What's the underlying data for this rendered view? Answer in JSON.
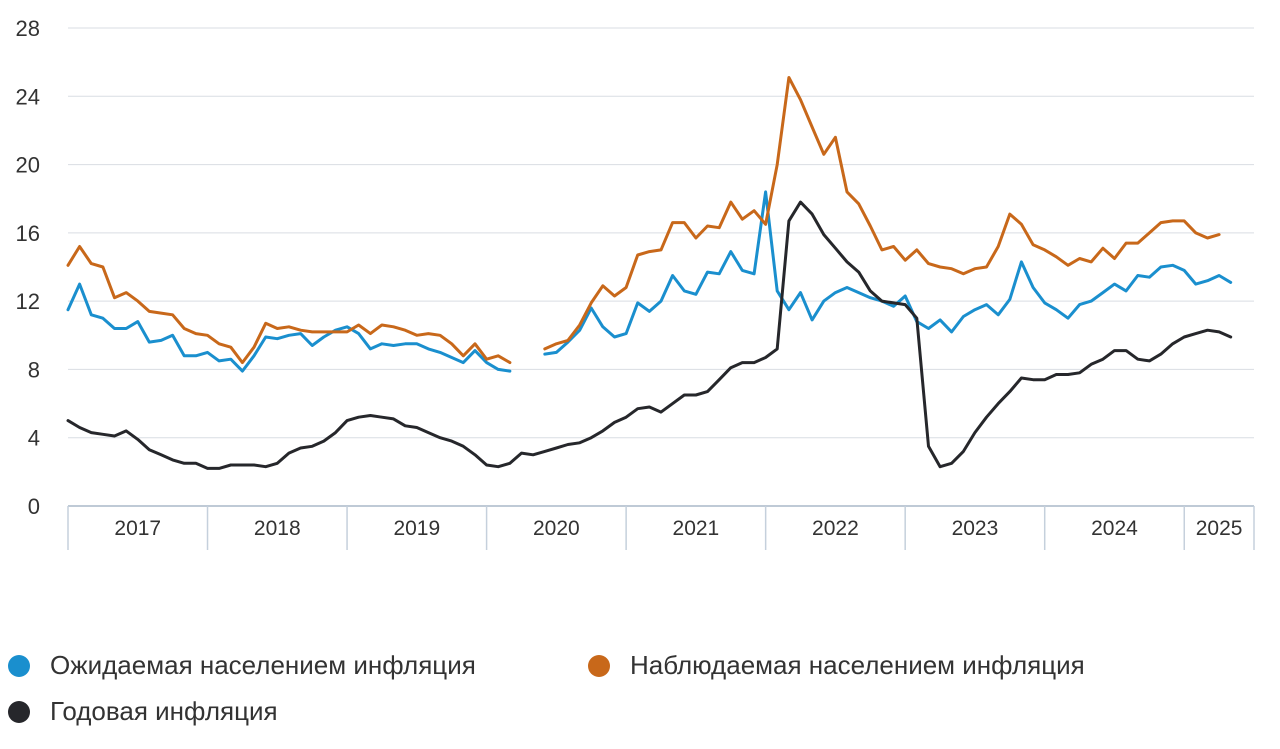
{
  "chart_data": {
    "type": "line",
    "title": "",
    "xlabel": "",
    "ylabel": "",
    "ylim": [
      0,
      28
    ],
    "yticks": [
      0,
      4,
      8,
      12,
      16,
      20,
      24,
      28
    ],
    "year_labels": [
      "2017",
      "2018",
      "2019",
      "2020",
      "2021",
      "2022",
      "2023",
      "2024",
      "2025"
    ],
    "x_start": 2017.0,
    "x_end": 2025.5,
    "series": [
      {
        "name": "Ожидаемая населением инфляция",
        "color": "#1a8fce",
        "points": [
          [
            2017.0,
            11.5
          ],
          [
            2017.083,
            13.0
          ],
          [
            2017.167,
            11.2
          ],
          [
            2017.25,
            11.0
          ],
          [
            2017.333,
            10.4
          ],
          [
            2017.417,
            10.4
          ],
          [
            2017.5,
            10.8
          ],
          [
            2017.583,
            9.6
          ],
          [
            2017.667,
            9.7
          ],
          [
            2017.75,
            10.0
          ],
          [
            2017.833,
            8.8
          ],
          [
            2017.917,
            8.8
          ],
          [
            2018.0,
            9.0
          ],
          [
            2018.083,
            8.5
          ],
          [
            2018.167,
            8.6
          ],
          [
            2018.25,
            7.9
          ],
          [
            2018.333,
            8.8
          ],
          [
            2018.417,
            9.9
          ],
          [
            2018.5,
            9.8
          ],
          [
            2018.583,
            10.0
          ],
          [
            2018.667,
            10.1
          ],
          [
            2018.75,
            9.4
          ],
          [
            2018.833,
            9.9
          ],
          [
            2018.917,
            10.3
          ],
          [
            2019.0,
            10.5
          ],
          [
            2019.083,
            10.1
          ],
          [
            2019.167,
            9.2
          ],
          [
            2019.25,
            9.5
          ],
          [
            2019.333,
            9.4
          ],
          [
            2019.417,
            9.5
          ],
          [
            2019.5,
            9.5
          ],
          [
            2019.583,
            9.2
          ],
          [
            2019.667,
            9.0
          ],
          [
            2019.75,
            8.7
          ],
          [
            2019.833,
            8.4
          ],
          [
            2019.917,
            9.1
          ],
          [
            2020.0,
            8.4
          ],
          [
            2020.083,
            8.0
          ],
          [
            2020.167,
            7.9
          ],
          null,
          [
            2020.417,
            8.9
          ],
          [
            2020.5,
            9.0
          ],
          [
            2020.583,
            9.6
          ],
          [
            2020.667,
            10.3
          ],
          [
            2020.75,
            11.6
          ],
          [
            2020.833,
            10.5
          ],
          [
            2020.917,
            9.9
          ],
          [
            2021.0,
            10.1
          ],
          [
            2021.083,
            11.9
          ],
          [
            2021.167,
            11.4
          ],
          [
            2021.25,
            12.0
          ],
          [
            2021.333,
            13.5
          ],
          [
            2021.417,
            12.6
          ],
          [
            2021.5,
            12.4
          ],
          [
            2021.583,
            13.7
          ],
          [
            2021.667,
            13.6
          ],
          [
            2021.75,
            14.9
          ],
          [
            2021.833,
            13.8
          ],
          [
            2021.917,
            13.6
          ],
          [
            2022.0,
            18.4
          ],
          [
            2022.083,
            12.6
          ],
          [
            2022.167,
            11.5
          ],
          [
            2022.25,
            12.5
          ],
          [
            2022.333,
            10.9
          ],
          [
            2022.417,
            12.0
          ],
          [
            2022.5,
            12.5
          ],
          [
            2022.583,
            12.8
          ],
          [
            2022.667,
            12.5
          ],
          [
            2022.75,
            12.2
          ],
          [
            2022.833,
            12.0
          ],
          [
            2022.917,
            11.7
          ],
          [
            2023.0,
            12.3
          ],
          [
            2023.083,
            10.8
          ],
          [
            2023.167,
            10.4
          ],
          [
            2023.25,
            10.9
          ],
          [
            2023.333,
            10.2
          ],
          [
            2023.417,
            11.1
          ],
          [
            2023.5,
            11.5
          ],
          [
            2023.583,
            11.8
          ],
          [
            2023.667,
            11.2
          ],
          [
            2023.75,
            12.1
          ],
          [
            2023.833,
            14.3
          ],
          [
            2023.917,
            12.8
          ],
          [
            2024.0,
            11.9
          ],
          [
            2024.083,
            11.5
          ],
          [
            2024.167,
            11.0
          ],
          [
            2024.25,
            11.8
          ],
          [
            2024.333,
            12.0
          ],
          [
            2024.417,
            12.5
          ],
          [
            2024.5,
            13.0
          ],
          [
            2024.583,
            12.6
          ],
          [
            2024.667,
            13.5
          ],
          [
            2024.75,
            13.4
          ],
          [
            2024.833,
            14.0
          ],
          [
            2024.917,
            14.1
          ],
          [
            2025.0,
            13.8
          ],
          [
            2025.083,
            13.0
          ],
          [
            2025.167,
            13.2
          ],
          [
            2025.25,
            13.5
          ],
          [
            2025.333,
            13.1
          ]
        ]
      },
      {
        "name": "Наблюдаемая населением инфляция",
        "color": "#c8681a",
        "points": [
          [
            2017.0,
            14.1
          ],
          [
            2017.083,
            15.2
          ],
          [
            2017.167,
            14.2
          ],
          [
            2017.25,
            14.0
          ],
          [
            2017.333,
            12.2
          ],
          [
            2017.417,
            12.5
          ],
          [
            2017.5,
            12.0
          ],
          [
            2017.583,
            11.4
          ],
          [
            2017.667,
            11.3
          ],
          [
            2017.75,
            11.2
          ],
          [
            2017.833,
            10.4
          ],
          [
            2017.917,
            10.1
          ],
          [
            2018.0,
            10.0
          ],
          [
            2018.083,
            9.5
          ],
          [
            2018.167,
            9.3
          ],
          [
            2018.25,
            8.4
          ],
          [
            2018.333,
            9.3
          ],
          [
            2018.417,
            10.7
          ],
          [
            2018.5,
            10.4
          ],
          [
            2018.583,
            10.5
          ],
          [
            2018.667,
            10.3
          ],
          [
            2018.75,
            10.2
          ],
          [
            2018.833,
            10.2
          ],
          [
            2018.917,
            10.2
          ],
          [
            2019.0,
            10.2
          ],
          [
            2019.083,
            10.6
          ],
          [
            2019.167,
            10.1
          ],
          [
            2019.25,
            10.6
          ],
          [
            2019.333,
            10.5
          ],
          [
            2019.417,
            10.3
          ],
          [
            2019.5,
            10.0
          ],
          [
            2019.583,
            10.1
          ],
          [
            2019.667,
            10.0
          ],
          [
            2019.75,
            9.5
          ],
          [
            2019.833,
            8.8
          ],
          [
            2019.917,
            9.5
          ],
          [
            2020.0,
            8.6
          ],
          [
            2020.083,
            8.8
          ],
          [
            2020.167,
            8.4
          ],
          null,
          [
            2020.417,
            9.2
          ],
          [
            2020.5,
            9.5
          ],
          [
            2020.583,
            9.7
          ],
          [
            2020.667,
            10.6
          ],
          [
            2020.75,
            11.9
          ],
          [
            2020.833,
            12.9
          ],
          [
            2020.917,
            12.3
          ],
          [
            2021.0,
            12.8
          ],
          [
            2021.083,
            14.7
          ],
          [
            2021.167,
            14.9
          ],
          [
            2021.25,
            15.0
          ],
          [
            2021.333,
            16.6
          ],
          [
            2021.417,
            16.6
          ],
          [
            2021.5,
            15.7
          ],
          [
            2021.583,
            16.4
          ],
          [
            2021.667,
            16.3
          ],
          [
            2021.75,
            17.8
          ],
          [
            2021.833,
            16.8
          ],
          [
            2021.917,
            17.3
          ],
          [
            2022.0,
            16.5
          ],
          [
            2022.083,
            20.0
          ],
          [
            2022.167,
            25.1
          ],
          [
            2022.25,
            23.8
          ],
          [
            2022.333,
            22.2
          ],
          [
            2022.417,
            20.6
          ],
          [
            2022.5,
            21.6
          ],
          [
            2022.583,
            18.4
          ],
          [
            2022.667,
            17.7
          ],
          [
            2022.75,
            16.4
          ],
          [
            2022.833,
            15.0
          ],
          [
            2022.917,
            15.2
          ],
          [
            2023.0,
            14.4
          ],
          [
            2023.083,
            15.0
          ],
          [
            2023.167,
            14.2
          ],
          [
            2023.25,
            14.0
          ],
          [
            2023.333,
            13.9
          ],
          [
            2023.417,
            13.6
          ],
          [
            2023.5,
            13.9
          ],
          [
            2023.583,
            14.0
          ],
          [
            2023.667,
            15.2
          ],
          [
            2023.75,
            17.1
          ],
          [
            2023.833,
            16.5
          ],
          [
            2023.917,
            15.3
          ],
          [
            2024.0,
            15.0
          ],
          [
            2024.083,
            14.6
          ],
          [
            2024.167,
            14.1
          ],
          [
            2024.25,
            14.5
          ],
          [
            2024.333,
            14.3
          ],
          [
            2024.417,
            15.1
          ],
          [
            2024.5,
            14.5
          ],
          [
            2024.583,
            15.4
          ],
          [
            2024.667,
            15.4
          ],
          [
            2024.75,
            16.0
          ],
          [
            2024.833,
            16.6
          ],
          [
            2024.917,
            16.7
          ],
          [
            2025.0,
            16.7
          ],
          [
            2025.083,
            16.0
          ],
          [
            2025.167,
            15.7
          ],
          [
            2025.25,
            15.9
          ]
        ]
      },
      {
        "name": "Годовая инфляция",
        "color": "#26272b",
        "points": [
          [
            2017.0,
            5.0
          ],
          [
            2017.083,
            4.6
          ],
          [
            2017.167,
            4.3
          ],
          [
            2017.25,
            4.2
          ],
          [
            2017.333,
            4.1
          ],
          [
            2017.417,
            4.4
          ],
          [
            2017.5,
            3.9
          ],
          [
            2017.583,
            3.3
          ],
          [
            2017.667,
            3.0
          ],
          [
            2017.75,
            2.7
          ],
          [
            2017.833,
            2.5
          ],
          [
            2017.917,
            2.5
          ],
          [
            2018.0,
            2.2
          ],
          [
            2018.083,
            2.2
          ],
          [
            2018.167,
            2.4
          ],
          [
            2018.25,
            2.4
          ],
          [
            2018.333,
            2.4
          ],
          [
            2018.417,
            2.3
          ],
          [
            2018.5,
            2.5
          ],
          [
            2018.583,
            3.1
          ],
          [
            2018.667,
            3.4
          ],
          [
            2018.75,
            3.5
          ],
          [
            2018.833,
            3.8
          ],
          [
            2018.917,
            4.3
          ],
          [
            2019.0,
            5.0
          ],
          [
            2019.083,
            5.2
          ],
          [
            2019.167,
            5.3
          ],
          [
            2019.25,
            5.2
          ],
          [
            2019.333,
            5.1
          ],
          [
            2019.417,
            4.7
          ],
          [
            2019.5,
            4.6
          ],
          [
            2019.583,
            4.3
          ],
          [
            2019.667,
            4.0
          ],
          [
            2019.75,
            3.8
          ],
          [
            2019.833,
            3.5
          ],
          [
            2019.917,
            3.0
          ],
          [
            2020.0,
            2.4
          ],
          [
            2020.083,
            2.3
          ],
          [
            2020.167,
            2.5
          ],
          [
            2020.25,
            3.1
          ],
          [
            2020.333,
            3.0
          ],
          [
            2020.417,
            3.2
          ],
          [
            2020.5,
            3.4
          ],
          [
            2020.583,
            3.6
          ],
          [
            2020.667,
            3.7
          ],
          [
            2020.75,
            4.0
          ],
          [
            2020.833,
            4.4
          ],
          [
            2020.917,
            4.9
          ],
          [
            2021.0,
            5.2
          ],
          [
            2021.083,
            5.7
          ],
          [
            2021.167,
            5.8
          ],
          [
            2021.25,
            5.5
          ],
          [
            2021.333,
            6.0
          ],
          [
            2021.417,
            6.5
          ],
          [
            2021.5,
            6.5
          ],
          [
            2021.583,
            6.7
          ],
          [
            2021.667,
            7.4
          ],
          [
            2021.75,
            8.1
          ],
          [
            2021.833,
            8.4
          ],
          [
            2021.917,
            8.4
          ],
          [
            2022.0,
            8.7
          ],
          [
            2022.083,
            9.2
          ],
          [
            2022.167,
            16.7
          ],
          [
            2022.25,
            17.8
          ],
          [
            2022.333,
            17.1
          ],
          [
            2022.417,
            15.9
          ],
          [
            2022.5,
            15.1
          ],
          [
            2022.583,
            14.3
          ],
          [
            2022.667,
            13.7
          ],
          [
            2022.75,
            12.6
          ],
          [
            2022.833,
            12.0
          ],
          [
            2022.917,
            11.9
          ],
          [
            2023.0,
            11.8
          ],
          [
            2023.083,
            11.0
          ],
          [
            2023.167,
            3.5
          ],
          [
            2023.25,
            2.3
          ],
          [
            2023.333,
            2.5
          ],
          [
            2023.417,
            3.2
          ],
          [
            2023.5,
            4.3
          ],
          [
            2023.583,
            5.2
          ],
          [
            2023.667,
            6.0
          ],
          [
            2023.75,
            6.7
          ],
          [
            2023.833,
            7.5
          ],
          [
            2023.917,
            7.4
          ],
          [
            2024.0,
            7.4
          ],
          [
            2024.083,
            7.7
          ],
          [
            2024.167,
            7.7
          ],
          [
            2024.25,
            7.8
          ],
          [
            2024.333,
            8.3
          ],
          [
            2024.417,
            8.6
          ],
          [
            2024.5,
            9.1
          ],
          [
            2024.583,
            9.1
          ],
          [
            2024.667,
            8.6
          ],
          [
            2024.75,
            8.5
          ],
          [
            2024.833,
            8.9
          ],
          [
            2024.917,
            9.5
          ],
          [
            2025.0,
            9.9
          ],
          [
            2025.083,
            10.1
          ],
          [
            2025.167,
            10.3
          ],
          [
            2025.25,
            10.2
          ],
          [
            2025.333,
            9.9
          ]
        ]
      }
    ]
  },
  "legend": {
    "items": [
      {
        "label": "Ожидаемая населением инфляция",
        "color": "#1a8fce"
      },
      {
        "label": "Наблюдаемая населением инфляция",
        "color": "#c8681a"
      },
      {
        "label": "Годовая инфляция",
        "color": "#26272b"
      }
    ]
  }
}
